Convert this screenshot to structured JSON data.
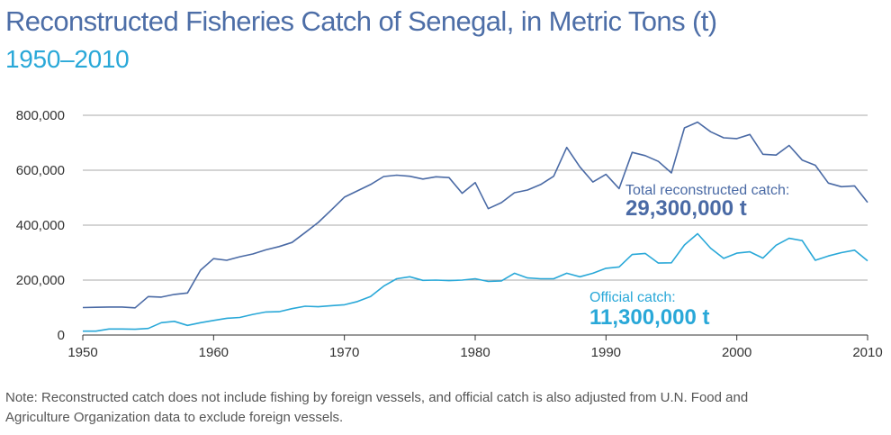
{
  "header": {
    "title": "Reconstructed Fisheries Catch of Senegal, in Metric Tons (t)",
    "subtitle": "1950–2010"
  },
  "note": {
    "line1": "Note: Reconstructed catch does not include fishing by foreign vessels, and official catch is also adjusted from U.N. Food and",
    "line2": "Agriculture Organization data to exclude foreign vessels."
  },
  "colors": {
    "total": "#4a6aa5",
    "official": "#29a8d8",
    "grid": "#aaaaaa",
    "axis": "#333333"
  },
  "chart_data": {
    "type": "line",
    "xlim": [
      1950,
      2010
    ],
    "ylim": [
      0,
      800000
    ],
    "grid": true,
    "x_ticks": [
      1950,
      1960,
      1970,
      1980,
      1990,
      2000,
      2010
    ],
    "y_ticks": [
      0,
      200000,
      400000,
      600000,
      800000
    ],
    "y_tick_labels": [
      "0",
      "200,000",
      "400,000",
      "600,000",
      "800,000"
    ],
    "x": [
      1950,
      1951,
      1952,
      1953,
      1954,
      1955,
      1956,
      1957,
      1958,
      1959,
      1960,
      1961,
      1962,
      1963,
      1964,
      1965,
      1966,
      1967,
      1968,
      1969,
      1970,
      1971,
      1972,
      1973,
      1974,
      1975,
      1976,
      1977,
      1978,
      1979,
      1980,
      1981,
      1982,
      1983,
      1984,
      1985,
      1986,
      1987,
      1988,
      1989,
      1990,
      1991,
      1992,
      1993,
      1994,
      1995,
      1996,
      1997,
      1998,
      1999,
      2000,
      2001,
      2002,
      2003,
      2004,
      2005,
      2006,
      2007,
      2008,
      2009,
      2010
    ],
    "series": [
      {
        "key": "total",
        "values": [
          100000,
          101000,
          102000,
          102000,
          99000,
          140000,
          138000,
          148000,
          153000,
          236000,
          278000,
          272000,
          285000,
          295000,
          310000,
          322000,
          337000,
          373000,
          410000,
          455000,
          502000,
          525000,
          548000,
          577000,
          582000,
          578000,
          568000,
          576000,
          573000,
          516000,
          555000,
          460000,
          482000,
          518000,
          528000,
          548000,
          578000,
          683000,
          612000,
          557000,
          585000,
          533000,
          665000,
          653000,
          632000,
          590000,
          754000,
          775000,
          740000,
          718000,
          715000,
          730000,
          658000,
          655000,
          690000,
          637000,
          618000,
          553000,
          540000,
          543000,
          483000
        ],
        "annotation": {
          "label": "Total reconstructed catch:",
          "value": "29,300,000 t"
        }
      },
      {
        "key": "official",
        "values": [
          14000,
          14000,
          22000,
          22000,
          21000,
          24000,
          45000,
          50000,
          35000,
          45000,
          53000,
          61000,
          64000,
          75000,
          84000,
          85000,
          96000,
          105000,
          103000,
          107000,
          110000,
          122000,
          140000,
          178000,
          205000,
          212000,
          199000,
          200000,
          198000,
          200000,
          205000,
          195000,
          197000,
          225000,
          208000,
          205000,
          205000,
          225000,
          212000,
          225000,
          243000,
          248000,
          293000,
          297000,
          262000,
          263000,
          328000,
          369000,
          316000,
          279000,
          298000,
          303000,
          280000,
          327000,
          352000,
          344000,
          272000,
          288000,
          300000,
          309000,
          270000
        ],
        "annotation": {
          "label": "Official catch:",
          "value": "11,300,000 t"
        }
      }
    ]
  }
}
